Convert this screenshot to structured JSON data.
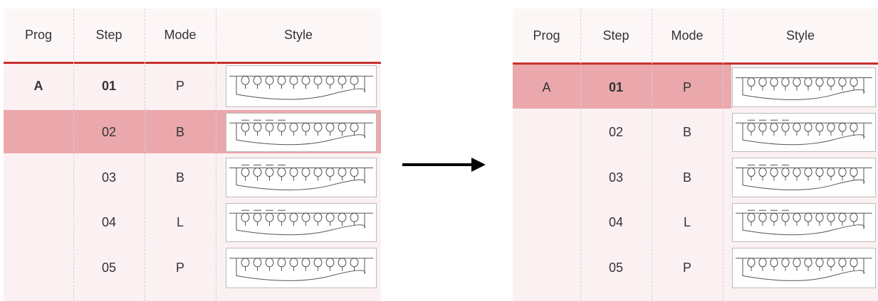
{
  "tables": [
    {
      "headers": [
        "Prog",
        "Step",
        "Mode",
        "Style"
      ],
      "rows": [
        {
          "prog": "A",
          "step": "01",
          "mode": "P"
        },
        {
          "step": "02",
          "mode": "B",
          "selected": true
        },
        {
          "step": "03",
          "mode": "B"
        },
        {
          "step": "04",
          "mode": "L"
        },
        {
          "step": "05",
          "mode": "P"
        }
      ]
    },
    {
      "headers": [
        "Prog",
        "Step",
        "Mode",
        "Style"
      ],
      "rows": [
        {
          "prog": "A",
          "step": "01",
          "mode": "P",
          "selected": true
        },
        {
          "step": "02",
          "mode": "B"
        },
        {
          "step": "03",
          "mode": "B"
        },
        {
          "step": "04",
          "mode": "L"
        },
        {
          "step": "05",
          "mode": "P"
        }
      ]
    }
  ]
}
